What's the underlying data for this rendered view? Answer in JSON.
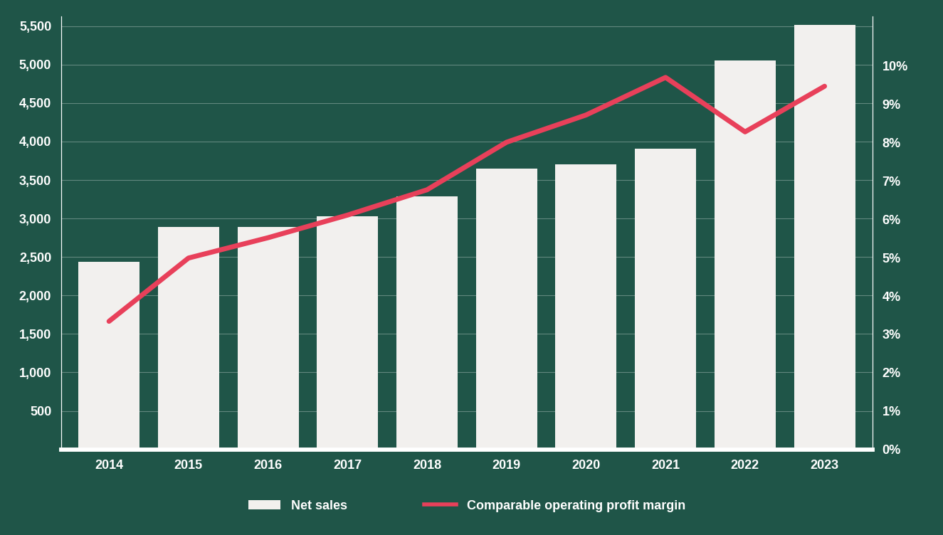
{
  "chart_data": {
    "type": "bar",
    "categories": [
      "2014",
      "2015",
      "2016",
      "2017",
      "2018",
      "2019",
      "2020",
      "2021",
      "2022",
      "2023"
    ],
    "series": [
      {
        "name": "Net sales",
        "type": "bar",
        "color": "#f2f0ee",
        "values": [
          2434,
          2894,
          2894,
          3027,
          3292,
          3646,
          3708,
          3903,
          5053,
          5513
        ]
      },
      {
        "name": "Comparable operating profit margin",
        "type": "line",
        "color": "#e8405a",
        "axis": "y2",
        "values": [
          3.34,
          4.99,
          5.52,
          6.11,
          6.77,
          8.01,
          8.72,
          9.7,
          8.28,
          9.47
        ]
      }
    ],
    "ylim": [
      0,
      5630
    ],
    "yticks": [
      {
        "value": 500,
        "label": "500"
      },
      {
        "value": 1000,
        "label": "1,000"
      },
      {
        "value": 1500,
        "label": "1,500"
      },
      {
        "value": 2000,
        "label": "2,000"
      },
      {
        "value": 2500,
        "label": "2,500"
      },
      {
        "value": 3000,
        "label": "3,000"
      },
      {
        "value": 3500,
        "label": "3,500"
      },
      {
        "value": 4000,
        "label": "4,000"
      },
      {
        "value": 4500,
        "label": "4,500"
      },
      {
        "value": 5000,
        "label": "5,000"
      },
      {
        "value": 5500,
        "label": "5,500"
      }
    ],
    "y2lim": [
      0,
      11.3
    ],
    "y2ticks": [
      {
        "value": 0,
        "label": "0%"
      },
      {
        "value": 1,
        "label": "1%"
      },
      {
        "value": 2,
        "label": "2%"
      },
      {
        "value": 3,
        "label": "3%"
      },
      {
        "value": 4,
        "label": "4%"
      },
      {
        "value": 5,
        "label": "5%"
      },
      {
        "value": 6,
        "label": "6%"
      },
      {
        "value": 7,
        "label": "7%"
      },
      {
        "value": 8,
        "label": "8%"
      },
      {
        "value": 9,
        "label": "9%"
      },
      {
        "value": 10,
        "label": "10%"
      }
    ],
    "grid": true,
    "legend": "upper center"
  }
}
